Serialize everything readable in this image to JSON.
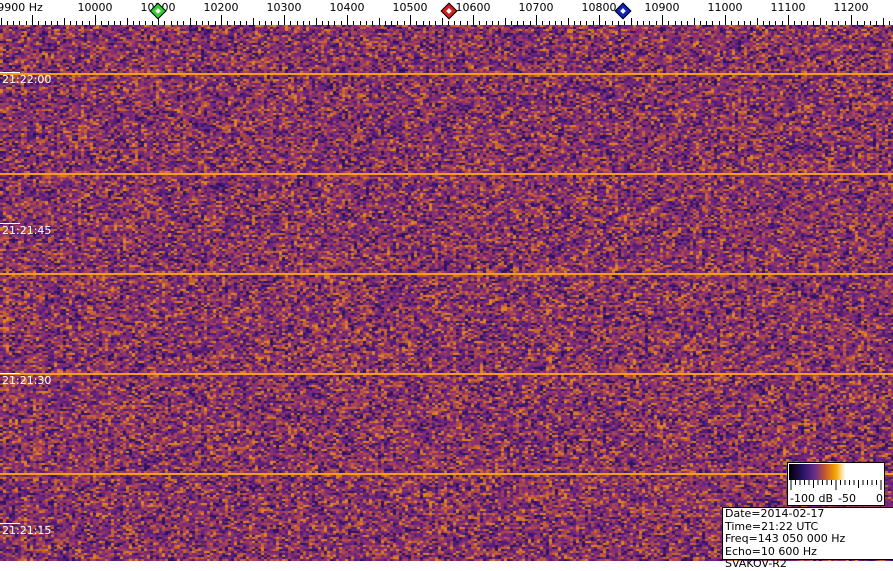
{
  "chart_data": {
    "type": "heatmap",
    "subtype": "spectrogram-waterfall",
    "x_axis": {
      "unit": "Hz",
      "range": [
        9850,
        11270
      ],
      "ticks": [
        9900,
        10000,
        10100,
        10200,
        10300,
        10400,
        10500,
        10600,
        10700,
        10800,
        10900,
        11000,
        11100,
        11200
      ],
      "tick_labels": [
        "9900 Hz",
        "10000",
        "10100",
        "10200",
        "10300",
        "10400",
        "10500",
        "10600",
        "10700",
        "10800",
        "10900",
        "11000",
        "11100",
        "11200"
      ]
    },
    "y_axis": {
      "unit": "time UTC",
      "direction": "newest-top",
      "tick_labels": [
        "21:22:00",
        "21:21:45",
        "21:21:30",
        "21:21:15"
      ]
    },
    "markers": [
      {
        "freq": 10100,
        "color": "#33cc33"
      },
      {
        "freq": 10562,
        "color": "#cc2222"
      },
      {
        "freq": 10838,
        "color": "#1122bb"
      }
    ],
    "colormap": [
      "#000000",
      "#2a1466",
      "#6b2f8a",
      "#c2562f",
      "#f7a800",
      "#ffffff"
    ],
    "colorbar": {
      "labels": [
        "-100 dB",
        "-50",
        "0"
      ],
      "range_db": [
        -100,
        0
      ]
    },
    "line_color": "#f59a1a"
  },
  "info": {
    "date_time": "Date=2014-02-17 Time=21:22 UTC",
    "freq": "Freq=143 050 000 Hz",
    "echo": "Echo=10 600 Hz",
    "station": "SVAKOV-R2"
  }
}
